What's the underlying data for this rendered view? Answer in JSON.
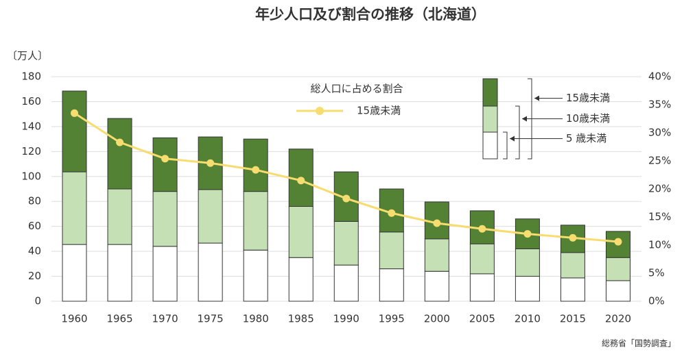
{
  "chart_data": {
    "type": "bar",
    "title": "年少人口及び割合の推移（北海道）",
    "y_label": "〔万人〕",
    "source": "総務省「国勢調査」",
    "categories": [
      "1960",
      "1965",
      "1970",
      "1975",
      "1980",
      "1985",
      "1990",
      "1995",
      "2000",
      "2005",
      "2010",
      "2015",
      "2020"
    ],
    "stacked": true,
    "series": [
      {
        "name": "5 歳未満",
        "color": "#ffffff",
        "values": [
          45.5,
          45.5,
          44,
          46.6,
          41,
          35,
          29,
          26,
          24,
          22,
          20,
          18.7,
          16.5
        ]
      },
      {
        "name": "10歳未満",
        "color": "#c5e0b4",
        "values": [
          58.2,
          44.5,
          44,
          42.9,
          47,
          41,
          35,
          29.5,
          26,
          24,
          22,
          20.3,
          18.5
        ]
      },
      {
        "name": "15歳未満",
        "color": "#548235",
        "values": [
          64.8,
          56.5,
          43,
          42.2,
          42,
          46,
          39.7,
          34.5,
          29.6,
          26.5,
          24,
          22,
          21
        ]
      },
      {
        "name": "15歳未満",
        "type": "line",
        "axis": "y2",
        "color": "#f7dc6f",
        "values": [
          33.5,
          28.3,
          25.4,
          24.6,
          23.4,
          21.5,
          18.3,
          15.7,
          13.9,
          12.9,
          12.0,
          11.3,
          10.6
        ]
      }
    ],
    "line_legend_title": "総人口に占める割合",
    "ylim": [
      0,
      180
    ],
    "yticks": [
      0,
      20,
      40,
      60,
      80,
      100,
      120,
      140,
      160,
      180
    ],
    "y2lim": [
      0,
      40
    ],
    "y2ticks": [
      {
        "value": 0,
        "label": "0%"
      },
      {
        "value": 5,
        "label": "5%"
      },
      {
        "value": 10,
        "label": "10%"
      },
      {
        "value": 15,
        "label": "15%"
      },
      {
        "value": 20,
        "label": "20%"
      },
      {
        "value": 25,
        "label": "25%"
      },
      {
        "value": 30,
        "label": "30%"
      },
      {
        "value": 35,
        "label": "35%"
      },
      {
        "value": 40,
        "label": "40%"
      }
    ],
    "grid": true
  }
}
